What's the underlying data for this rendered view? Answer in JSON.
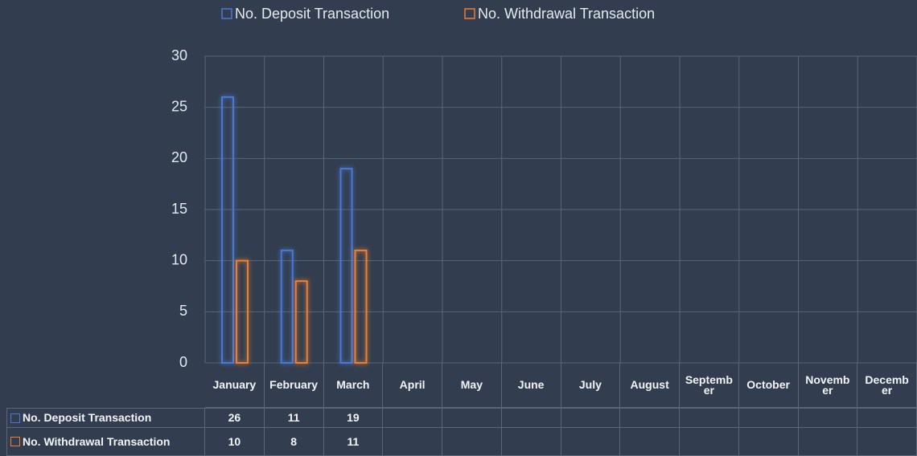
{
  "chart_data": {
    "type": "bar",
    "categories": [
      "January",
      "February",
      "March",
      "April",
      "May",
      "June",
      "July",
      "August",
      "September",
      "October",
      "November",
      "December"
    ],
    "series": [
      {
        "name": "No. Deposit  Transaction",
        "color": "#4a78d6",
        "values": [
          26,
          11,
          19,
          null,
          null,
          null,
          null,
          null,
          null,
          null,
          null,
          null
        ]
      },
      {
        "name": "No. Withdrawal Transaction",
        "color": "#ee7e32",
        "values": [
          10,
          8,
          11,
          null,
          null,
          null,
          null,
          null,
          null,
          null,
          null,
          null
        ]
      }
    ],
    "ylim": [
      0,
      30
    ],
    "yticks": [
      0,
      5,
      10,
      15,
      20,
      25,
      30
    ],
    "grid": true,
    "legend": "top",
    "data_table": true
  }
}
